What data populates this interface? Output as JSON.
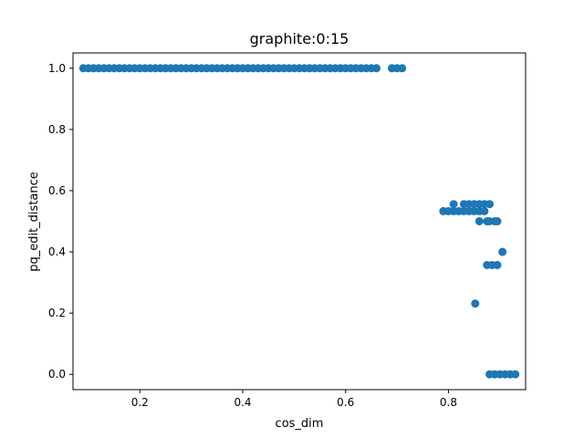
{
  "chart_data": {
    "type": "scatter",
    "title": "graphite:0:15",
    "xlabel": "cos_dim",
    "ylabel": "pq_edit_distance",
    "xlim": [
      0.07,
      0.95
    ],
    "ylim": [
      -0.05,
      1.05
    ],
    "xticks": [
      0.2,
      0.4,
      0.6,
      0.8
    ],
    "yticks": [
      0.0,
      0.2,
      0.4,
      0.6,
      0.8,
      1.0
    ],
    "xtick_labels": [
      "0.2",
      "0.4",
      "0.6",
      "0.8"
    ],
    "ytick_labels": [
      "0.0",
      "0.2",
      "0.4",
      "0.6",
      "0.8",
      "1.0"
    ],
    "grid": false,
    "marker_color": "#1f77b4",
    "series": [
      {
        "x": [
          0.09,
          0.1,
          0.11,
          0.12,
          0.13,
          0.14,
          0.15,
          0.16,
          0.17,
          0.18,
          0.19,
          0.2,
          0.21,
          0.22,
          0.23,
          0.24,
          0.25,
          0.26,
          0.27,
          0.28,
          0.29,
          0.3,
          0.31,
          0.32,
          0.33,
          0.34,
          0.35,
          0.36,
          0.37,
          0.38,
          0.39,
          0.4,
          0.41,
          0.42,
          0.43,
          0.44,
          0.45,
          0.46,
          0.47,
          0.48,
          0.49,
          0.5,
          0.51,
          0.52,
          0.53,
          0.54,
          0.55,
          0.56,
          0.57,
          0.58,
          0.59,
          0.6,
          0.61,
          0.62,
          0.63,
          0.64,
          0.65,
          0.66,
          0.69,
          0.7,
          0.71,
          0.79,
          0.8,
          0.81,
          0.82,
          0.83,
          0.84,
          0.85,
          0.86,
          0.87,
          0.81,
          0.83,
          0.84,
          0.85,
          0.86,
          0.87,
          0.88,
          0.86,
          0.875,
          0.88,
          0.89,
          0.895,
          0.905,
          0.875,
          0.885,
          0.895,
          0.852,
          0.88,
          0.89,
          0.9,
          0.91,
          0.92,
          0.93
        ],
        "y": [
          1.0,
          1.0,
          1.0,
          1.0,
          1.0,
          1.0,
          1.0,
          1.0,
          1.0,
          1.0,
          1.0,
          1.0,
          1.0,
          1.0,
          1.0,
          1.0,
          1.0,
          1.0,
          1.0,
          1.0,
          1.0,
          1.0,
          1.0,
          1.0,
          1.0,
          1.0,
          1.0,
          1.0,
          1.0,
          1.0,
          1.0,
          1.0,
          1.0,
          1.0,
          1.0,
          1.0,
          1.0,
          1.0,
          1.0,
          1.0,
          1.0,
          1.0,
          1.0,
          1.0,
          1.0,
          1.0,
          1.0,
          1.0,
          1.0,
          1.0,
          1.0,
          1.0,
          1.0,
          1.0,
          1.0,
          1.0,
          1.0,
          1.0,
          1.0,
          1.0,
          1.0,
          0.533,
          0.533,
          0.533,
          0.533,
          0.533,
          0.533,
          0.533,
          0.533,
          0.533,
          0.556,
          0.556,
          0.556,
          0.556,
          0.556,
          0.556,
          0.556,
          0.5,
          0.5,
          0.5,
          0.5,
          0.5,
          0.4,
          0.357,
          0.357,
          0.357,
          0.231,
          0.0,
          0.0,
          0.0,
          0.0,
          0.0,
          0.0
        ]
      }
    ]
  }
}
